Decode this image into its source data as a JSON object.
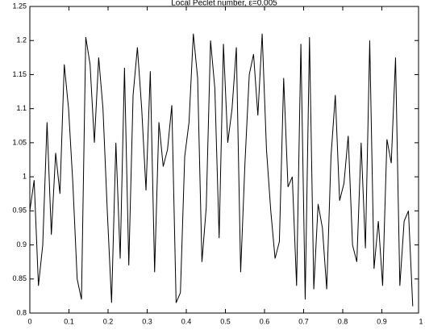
{
  "chart_data": {
    "type": "line",
    "title": "Local Peclet number,   ε=0.005",
    "x": [
      0,
      0.011,
      0.022,
      0.033,
      0.044,
      0.055,
      0.066,
      0.077,
      0.088,
      0.099,
      0.11,
      0.121,
      0.132,
      0.143,
      0.154,
      0.165,
      0.176,
      0.187,
      0.198,
      0.209,
      0.22,
      0.231,
      0.242,
      0.253,
      0.264,
      0.275,
      0.286,
      0.297,
      0.308,
      0.319,
      0.33,
      0.341,
      0.352,
      0.363,
      0.374,
      0.385,
      0.396,
      0.407,
      0.418,
      0.429,
      0.44,
      0.451,
      0.462,
      0.473,
      0.484,
      0.495,
      0.506,
      0.517,
      0.528,
      0.539,
      0.55,
      0.561,
      0.572,
      0.583,
      0.594,
      0.605,
      0.616,
      0.627,
      0.638,
      0.649,
      0.66,
      0.671,
      0.682,
      0.693,
      0.704,
      0.715,
      0.726,
      0.737,
      0.748,
      0.759,
      0.77,
      0.781,
      0.792,
      0.803,
      0.814,
      0.825,
      0.836,
      0.847,
      0.858,
      0.869,
      0.88,
      0.891,
      0.902,
      0.913,
      0.924,
      0.935,
      0.946,
      0.957,
      0.968,
      0.979
    ],
    "series": [
      {
        "color": "#000000",
        "values": [
          0.95,
          0.995,
          0.84,
          0.9,
          1.08,
          0.915,
          1.035,
          0.975,
          1.165,
          1.1,
          0.99,
          0.85,
          0.82,
          1.205,
          1.165,
          1.05,
          1.175,
          1.1,
          0.95,
          0.815,
          1.05,
          0.88,
          1.16,
          0.87,
          1.12,
          1.19,
          1.1,
          0.98,
          1.155,
          0.86,
          1.08,
          1.015,
          1.04,
          1.105,
          0.815,
          0.83,
          1.03,
          1.08,
          1.21,
          1.145,
          0.875,
          0.955,
          1.2,
          1.13,
          0.91,
          1.195,
          1.05,
          1.1,
          1.19,
          0.86,
          1.02,
          1.15,
          1.18,
          1.09,
          1.21,
          1.04,
          0.95,
          0.88,
          0.905,
          1.145,
          0.985,
          1.0,
          0.84,
          1.195,
          0.82,
          1.205,
          0.835,
          0.96,
          0.925,
          0.835,
          1.03,
          1.12,
          0.965,
          0.99,
          1.06,
          0.9,
          0.875,
          1.05,
          0.895,
          1.2,
          0.865,
          0.935,
          0.84,
          1.055,
          1.02,
          1.175,
          0.84,
          0.935,
          0.95,
          0.81
        ]
      }
    ],
    "xlim": [
      0,
      1
    ],
    "xticks": [
      0,
      0.1,
      0.2,
      0.3,
      0.4,
      0.5,
      0.6,
      0.7,
      0.8,
      0.9,
      1
    ],
    "ylim": [
      0.8,
      1.25
    ],
    "yticks": [
      0.8,
      0.85,
      0.9,
      0.95,
      1,
      1.05,
      1.1,
      1.15,
      1.2,
      1.25
    ],
    "grid": false
  }
}
